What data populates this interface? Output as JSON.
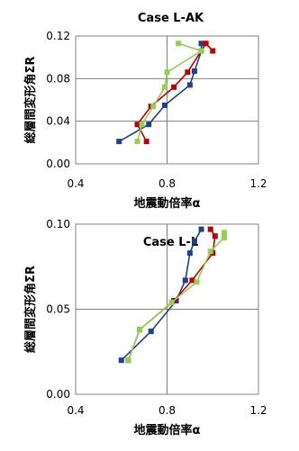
{
  "chart_data": [
    {
      "type": "line",
      "title": "Case L-AK",
      "xlabel": "地震動倍率α",
      "ylabel": "総層間変形角ΣR",
      "xlim": [
        0.4,
        1.2
      ],
      "ylim": [
        0.0,
        0.12
      ],
      "xticks": [
        "0.4",
        "0.8",
        "1.2"
      ],
      "yticks": [
        "0.00",
        "0.04",
        "0.08",
        "0.12"
      ],
      "grid": true,
      "series": [
        {
          "color": "#1f3f8f",
          "points": [
            [
              0.59,
              0.021
            ],
            [
              0.72,
              0.037
            ],
            [
              0.79,
              0.055
            ],
            [
              0.9,
              0.074
            ],
            [
              0.92,
              0.087
            ],
            [
              0.95,
              0.106
            ],
            [
              0.95,
              0.113
            ]
          ]
        },
        {
          "color": "#c00000",
          "points": [
            [
              0.71,
              0.021
            ],
            [
              0.67,
              0.037
            ],
            [
              0.73,
              0.054
            ],
            [
              0.83,
              0.072
            ],
            [
              0.89,
              0.086
            ],
            [
              0.97,
              0.113
            ],
            [
              1.0,
              0.106
            ]
          ]
        },
        {
          "color": "#92d050",
          "points": [
            [
              0.67,
              0.021
            ],
            [
              0.69,
              0.037
            ],
            [
              0.74,
              0.054
            ],
            [
              0.79,
              0.072
            ],
            [
              0.8,
              0.086
            ],
            [
              0.95,
              0.106
            ],
            [
              0.85,
              0.113
            ]
          ]
        }
      ]
    },
    {
      "type": "line",
      "title": "Case L-L",
      "xlabel": "地震動倍率α",
      "ylabel": "総層間変形角ΣR",
      "xlim": [
        0.4,
        1.2
      ],
      "ylim": [
        0.0,
        0.1
      ],
      "xticks": [
        "0.4",
        "0.8",
        "1.2"
      ],
      "yticks": [
        "0.00",
        "0.05",
        "0.10"
      ],
      "grid": true,
      "series": [
        {
          "color": "#1f3f8f",
          "points": [
            [
              0.6,
              0.02
            ],
            [
              0.73,
              0.037
            ],
            [
              0.84,
              0.055
            ],
            [
              0.88,
              0.067
            ],
            [
              0.9,
              0.083
            ],
            [
              0.92,
              0.09
            ],
            [
              0.95,
              0.097
            ]
          ]
        },
        {
          "color": "#c00000",
          "points": [
            [
              0.63,
              0.02
            ],
            [
              0.68,
              0.038
            ],
            [
              0.83,
              0.055
            ],
            [
              0.91,
              0.067
            ],
            [
              1.0,
              0.083
            ],
            [
              1.01,
              0.093
            ],
            [
              0.99,
              0.097
            ]
          ]
        },
        {
          "color": "#92d050",
          "points": [
            [
              0.63,
              0.02
            ],
            [
              0.68,
              0.038
            ],
            [
              0.82,
              0.054
            ],
            [
              0.93,
              0.066
            ],
            [
              0.99,
              0.084
            ],
            [
              1.05,
              0.092
            ],
            [
              1.05,
              0.095
            ]
          ]
        }
      ]
    }
  ]
}
